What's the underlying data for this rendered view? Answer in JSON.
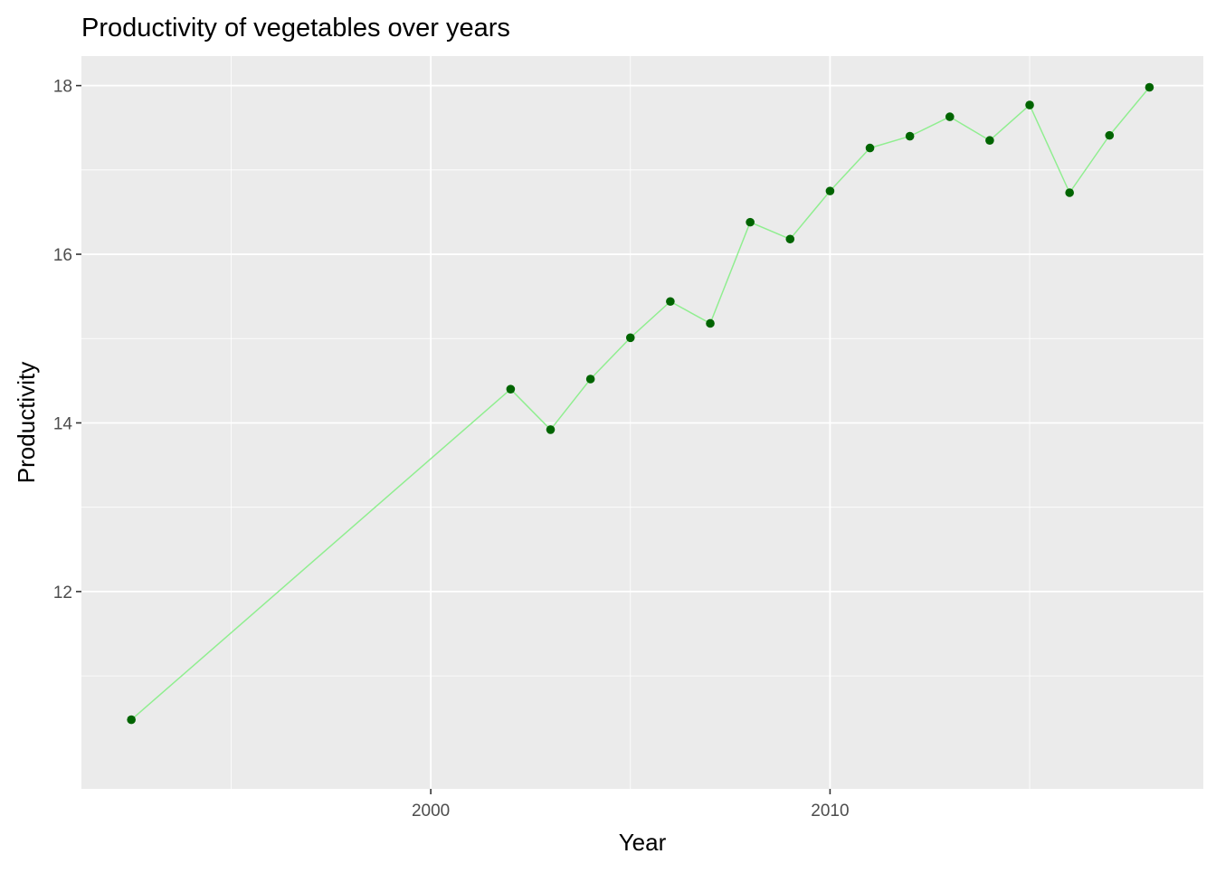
{
  "chart_data": {
    "type": "line",
    "title": "Productivity of vegetables over years",
    "xlabel": "Year",
    "ylabel": "Productivity",
    "x_ticks": [
      2000,
      2010
    ],
    "y_ticks": [
      12,
      14,
      16,
      18
    ],
    "xlim": [
      1991.25,
      2019.35
    ],
    "ylim": [
      9.66,
      18.35
    ],
    "grid": true,
    "legend": "none",
    "colors": {
      "panel_bg": "#EBEBEB",
      "grid": "#FFFFFF",
      "line": "#90EE90",
      "point": "#006400",
      "text": "#000000",
      "tick_text": "#4D4D4D",
      "tick_mark": "#333333"
    },
    "series": [
      {
        "x": [
          1992.5,
          2002,
          2003,
          2004,
          2005,
          2006,
          2007,
          2008,
          2009,
          2010,
          2011,
          2012,
          2013,
          2014,
          2015,
          2016,
          2017,
          2018
        ],
        "values": [
          10.48,
          14.4,
          13.92,
          14.52,
          15.01,
          15.44,
          15.18,
          16.38,
          16.18,
          16.75,
          17.26,
          17.4,
          17.63,
          17.35,
          17.77,
          16.73,
          17.41,
          17.98
        ]
      }
    ]
  }
}
